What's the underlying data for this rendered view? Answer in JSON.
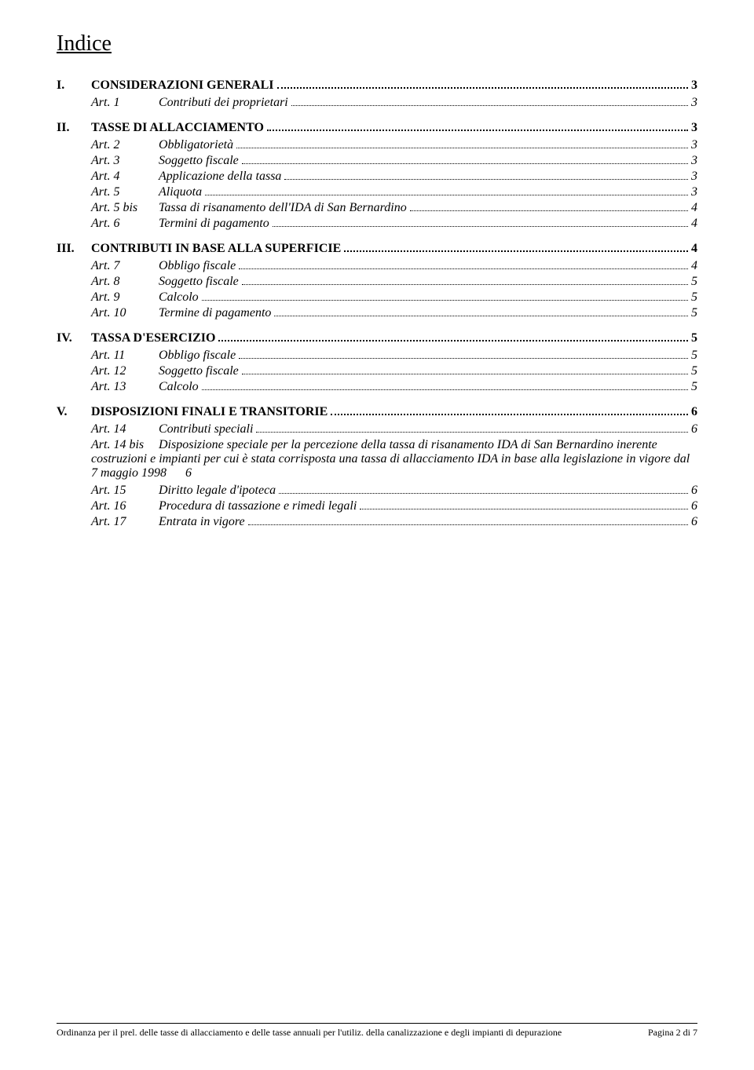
{
  "title": "Indice",
  "sections": [
    {
      "roman": "I.",
      "title": "CONSIDERAZIONI GENERALI",
      "page": "3",
      "items": [
        {
          "art": "Art. 1",
          "title": "Contributi dei proprietari",
          "page": "3"
        }
      ]
    },
    {
      "roman": "II.",
      "title": "TASSE DI ALLACCIAMENTO",
      "page": "3",
      "items": [
        {
          "art": "Art. 2",
          "title": "Obbligatorietà",
          "page": "3"
        },
        {
          "art": "Art. 3",
          "title": "Soggetto fiscale",
          "page": "3"
        },
        {
          "art": "Art. 4",
          "title": "Applicazione della tassa",
          "page": "3"
        },
        {
          "art": "Art. 5",
          "title": "Aliquota",
          "page": "3"
        },
        {
          "art": "Art. 5 bis",
          "title": "Tassa di risanamento dell'IDA di San Bernardino",
          "page": "4"
        },
        {
          "art": "Art. 6",
          "title": "Termini di pagamento",
          "page": "4"
        }
      ]
    },
    {
      "roman": "III.",
      "title": "CONTRIBUTI IN BASE ALLA SUPERFICIE",
      "page": "4",
      "items": [
        {
          "art": "Art. 7",
          "title": "Obbligo fiscale",
          "page": "4"
        },
        {
          "art": "Art. 8",
          "title": "Soggetto fiscale",
          "page": "5"
        },
        {
          "art": "Art. 9",
          "title": "Calcolo",
          "page": "5"
        },
        {
          "art": "Art. 10",
          "title": "Termine di pagamento",
          "page": "5"
        }
      ]
    },
    {
      "roman": "IV.",
      "title": "TASSA D'ESERCIZIO",
      "page": "5",
      "items": [
        {
          "art": "Art. 11",
          "title": "Obbligo fiscale",
          "page": "5"
        },
        {
          "art": "Art. 12",
          "title": "Soggetto fiscale",
          "page": "5"
        },
        {
          "art": "Art. 13",
          "title": "Calcolo",
          "page": "5"
        }
      ]
    },
    {
      "roman": "V.",
      "title": "DISPOSIZIONI FINALI E TRANSITORIE",
      "page": "6",
      "items": [
        {
          "art": "Art. 14",
          "title": "Contributi speciali",
          "page": "6"
        },
        {
          "art": "Art. 14 bis",
          "title_long": "Disposizione speciale per la percezione della tassa di risanamento IDA di San Bernardino inerente costruzioni e impianti per cui è stata corrisposta una tassa di allacciamento IDA in base alla legislazione in vigore dal 7 maggio 1998",
          "page_inline": "6"
        },
        {
          "art": "Art. 15",
          "title": "Diritto legale d'ipoteca",
          "page": "6"
        },
        {
          "art": "Art. 16",
          "title": "Procedura di tassazione e rimedi legali",
          "page": "6"
        },
        {
          "art": "Art. 17",
          "title": "Entrata in vigore",
          "page": "6"
        }
      ]
    }
  ],
  "footer": {
    "left": "Ordinanza per il prel. delle tasse di allacciamento e delle tasse annuali per l'utiliz. della canalizzazione e degli impianti di depurazione",
    "right": "Pagina 2 di 7"
  },
  "colors": {
    "text": "#000000",
    "background": "#ffffff"
  },
  "typography": {
    "font_family": "Times New Roman",
    "title_fontsize": 28,
    "body_fontsize": 16,
    "footer_fontsize": 12
  }
}
